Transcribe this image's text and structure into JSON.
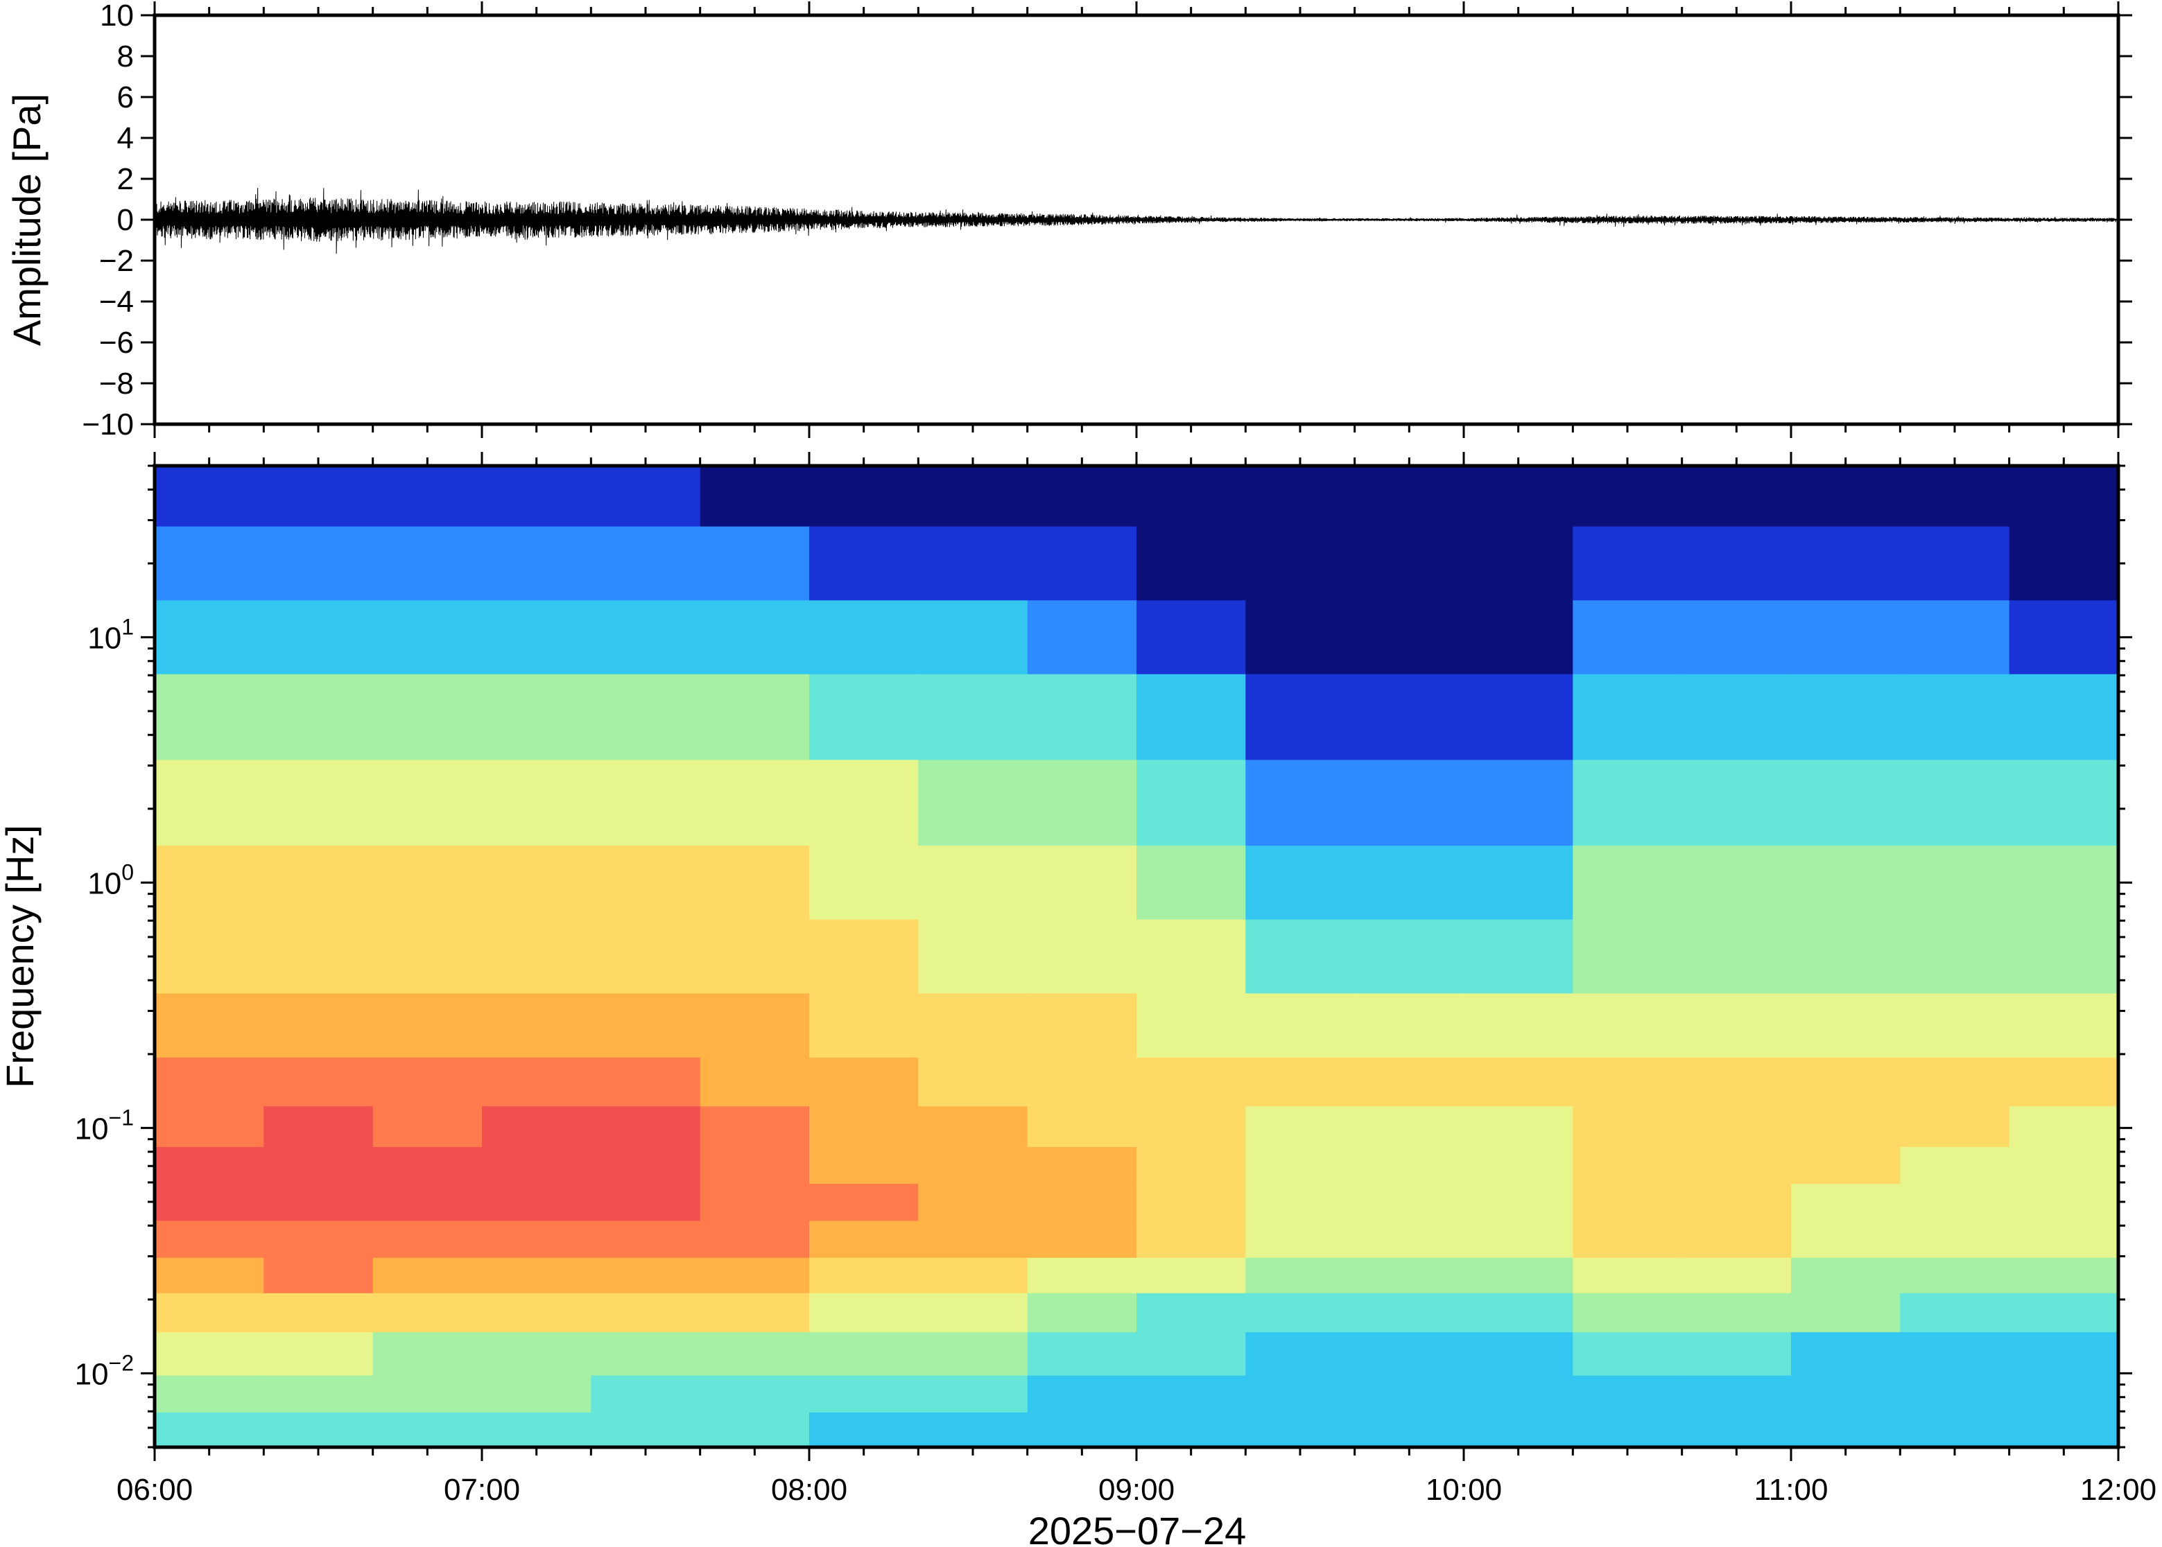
{
  "chart_data": [
    {
      "type": "line",
      "title": "",
      "ylabel": "Amplitude [Pa]",
      "ylim": [
        -10,
        10
      ],
      "yticks": [
        10,
        8,
        6,
        4,
        2,
        0,
        -2,
        -4,
        -6,
        -8,
        -10
      ],
      "ytick_labels": [
        "10",
        "8",
        "6",
        "4",
        "2",
        "0",
        "−2",
        "−4",
        "−6",
        "−8",
        "−10"
      ],
      "xlim": [
        "06:00",
        "12:00"
      ],
      "grid": false,
      "series": [
        {
          "values_description_free": true,
          "x": [
            "06:00",
            "06:15",
            "06:30",
            "06:45",
            "07:00",
            "07:15",
            "07:30",
            "07:45",
            "08:00",
            "08:15",
            "08:30",
            "08:45",
            "09:00",
            "09:15",
            "09:30",
            "09:45",
            "10:00",
            "10:15",
            "10:30",
            "10:45",
            "11:00",
            "11:15",
            "11:30",
            "11:45",
            "12:00"
          ],
          "envelope": [
            0.9,
            1.0,
            1.1,
            1.0,
            0.9,
            0.9,
            0.8,
            0.7,
            0.55,
            0.4,
            0.35,
            0.3,
            0.2,
            0.12,
            0.08,
            0.07,
            0.08,
            0.15,
            0.2,
            0.2,
            0.18,
            0.15,
            0.12,
            0.1,
            0.1
          ],
          "peaks": [
            1.4,
            1.5,
            1.8,
            1.6,
            1.2,
            1.3,
            1.1,
            0.9,
            0.8,
            0.6,
            0.5,
            0.4,
            0.3,
            0.2,
            0.15,
            0.12,
            0.15,
            0.3,
            0.35,
            0.3,
            0.3,
            0.25,
            0.2,
            0.15,
            0.15
          ],
          "troughs": [
            -1.6,
            -1.5,
            -2.1,
            -1.4,
            -1.3,
            -1.4,
            -1.1,
            -0.9,
            -0.8,
            -0.6,
            -0.5,
            -0.4,
            -0.3,
            -0.2,
            -0.15,
            -0.12,
            -0.15,
            -0.3,
            -0.35,
            -0.3,
            -0.3,
            -0.25,
            -0.2,
            -0.15,
            -0.15
          ]
        }
      ]
    },
    {
      "type": "heatmap",
      "title": "",
      "ylabel": "Frequency [Hz]",
      "xlabel": "2025−07−24",
      "yscale": "log",
      "ylim": [
        0.005,
        50
      ],
      "yticks_major": [
        {
          "value": 10,
          "base": "10",
          "exp": "1"
        },
        {
          "value": 1,
          "base": "10",
          "exp": "0"
        },
        {
          "value": 0.1,
          "base": "10",
          "exp": "−1"
        },
        {
          "value": 0.01,
          "base": "10",
          "exp": "−2"
        }
      ],
      "xticks": [
        "06:00",
        "07:00",
        "08:00",
        "09:00",
        "10:00",
        "11:00",
        "12:00"
      ],
      "xlim": [
        "06:00",
        "12:00"
      ],
      "colormap": [
        "#0a0f7a",
        "#1a33d6",
        "#2e8bff",
        "#33c6f0",
        "#66e6d9",
        "#a6f0a6",
        "#e6f58c",
        "#ffd966",
        "#ffb347",
        "#ff7a4d",
        "#f25050"
      ],
      "rows_freq_hz": [
        40,
        20,
        10,
        5,
        2,
        1,
        0.5,
        0.25,
        0.15,
        0.1,
        0.07,
        0.05,
        0.035,
        0.025,
        0.018,
        0.012,
        0.008,
        0.006
      ],
      "cols_time": [
        "06:00",
        "06:20",
        "06:40",
        "07:00",
        "07:20",
        "07:40",
        "08:00",
        "08:20",
        "08:40",
        "09:00",
        "09:20",
        "09:40",
        "10:00",
        "10:20",
        "10:40",
        "11:00",
        "11:20",
        "11:40"
      ],
      "power_index": [
        [
          1,
          1,
          1,
          1,
          1,
          0,
          0,
          0,
          0,
          0,
          0,
          0,
          0,
          0,
          0,
          0,
          0,
          0
        ],
        [
          2,
          2,
          2,
          2,
          2,
          2,
          1,
          1,
          1,
          0,
          0,
          0,
          0,
          1,
          1,
          1,
          1,
          0
        ],
        [
          3,
          3,
          3,
          3,
          3,
          3,
          3,
          3,
          2,
          1,
          0,
          0,
          0,
          2,
          2,
          2,
          2,
          1
        ],
        [
          5,
          5,
          5,
          5,
          5,
          5,
          4,
          4,
          4,
          3,
          1,
          1,
          1,
          3,
          3,
          3,
          3,
          3
        ],
        [
          6,
          6,
          6,
          6,
          6,
          6,
          6,
          5,
          5,
          4,
          2,
          2,
          2,
          4,
          4,
          4,
          4,
          4
        ],
        [
          7,
          7,
          7,
          7,
          7,
          7,
          6,
          6,
          6,
          5,
          3,
          3,
          3,
          5,
          5,
          5,
          5,
          5
        ],
        [
          7,
          7,
          7,
          7,
          7,
          7,
          7,
          6,
          6,
          6,
          4,
          4,
          4,
          5,
          5,
          5,
          5,
          5
        ],
        [
          8,
          8,
          8,
          8,
          8,
          8,
          7,
          7,
          7,
          6,
          6,
          6,
          6,
          6,
          6,
          6,
          6,
          6
        ],
        [
          9,
          9,
          9,
          9,
          9,
          8,
          8,
          7,
          7,
          7,
          7,
          7,
          7,
          7,
          7,
          7,
          7,
          7
        ],
        [
          9,
          10,
          9,
          10,
          10,
          9,
          8,
          8,
          7,
          7,
          6,
          6,
          6,
          7,
          7,
          7,
          7,
          6
        ],
        [
          10,
          10,
          10,
          10,
          10,
          9,
          8,
          8,
          8,
          7,
          6,
          6,
          6,
          7,
          7,
          7,
          6,
          6
        ],
        [
          10,
          10,
          10,
          10,
          10,
          9,
          9,
          8,
          8,
          7,
          6,
          6,
          6,
          7,
          7,
          6,
          6,
          6
        ],
        [
          9,
          9,
          9,
          9,
          9,
          9,
          8,
          8,
          8,
          7,
          6,
          6,
          6,
          7,
          7,
          6,
          6,
          6
        ],
        [
          8,
          9,
          8,
          8,
          8,
          8,
          7,
          7,
          6,
          6,
          5,
          5,
          5,
          6,
          6,
          5,
          5,
          5
        ],
        [
          7,
          7,
          7,
          7,
          7,
          7,
          6,
          6,
          5,
          4,
          4,
          4,
          4,
          5,
          5,
          5,
          4,
          4
        ],
        [
          6,
          6,
          5,
          5,
          5,
          5,
          5,
          5,
          4,
          4,
          3,
          3,
          3,
          4,
          4,
          3,
          3,
          3
        ],
        [
          5,
          5,
          5,
          5,
          4,
          4,
          4,
          4,
          3,
          3,
          3,
          3,
          3,
          3,
          3,
          3,
          3,
          3
        ],
        [
          4,
          4,
          4,
          4,
          4,
          4,
          3,
          3,
          3,
          3,
          3,
          3,
          3,
          3,
          3,
          3,
          3,
          3
        ]
      ]
    }
  ]
}
